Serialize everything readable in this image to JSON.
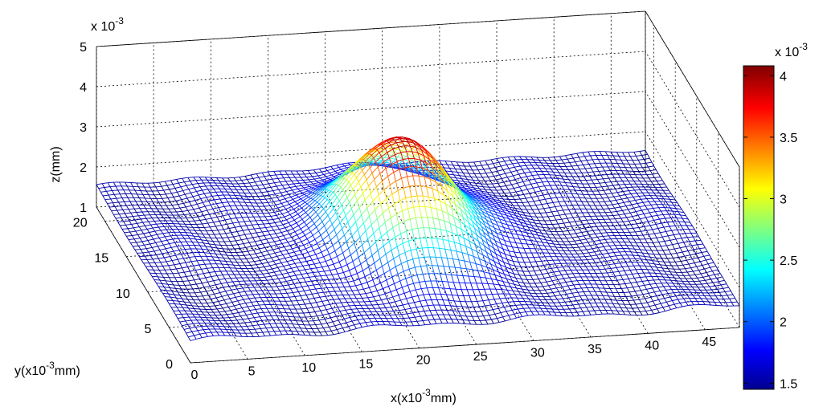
{
  "chart_data": {
    "type": "surface",
    "plot_style": "3d mesh",
    "colormap": "jet",
    "grid": true,
    "colorbar_placement": "right",
    "x_label": "x(x10",
    "x_label_exp": "-3",
    "x_label_tail": "mm)",
    "y_label": "y(x10",
    "y_label_exp": "-3",
    "y_label_tail": "mm)",
    "z_label": "z(mm)",
    "z_multiplier": {
      "base": "x 10",
      "exp": "-3"
    },
    "colorbar_multiplier": {
      "base": "x 10",
      "exp": "-3"
    },
    "xlim": [
      0,
      48
    ],
    "ylim": [
      0,
      22
    ],
    "zlim": [
      1,
      5
    ],
    "x_ticks": [
      "0",
      "5",
      "10",
      "15",
      "20",
      "25",
      "30",
      "35",
      "40",
      "45"
    ],
    "y_ticks": [
      "0",
      "5",
      "10",
      "15",
      "20"
    ],
    "z_ticks": [
      "1",
      "2",
      "3",
      "4",
      "5"
    ],
    "colorbar_ticks": [
      "1.5",
      "2",
      "2.5",
      "3",
      "3.5",
      "4"
    ],
    "colorbar_range": [
      1.45,
      4.08
    ],
    "surface": {
      "base_level": 1.55,
      "peak": {
        "x": 23,
        "y": 12,
        "z": 4.05,
        "width": 4
      }
    }
  }
}
